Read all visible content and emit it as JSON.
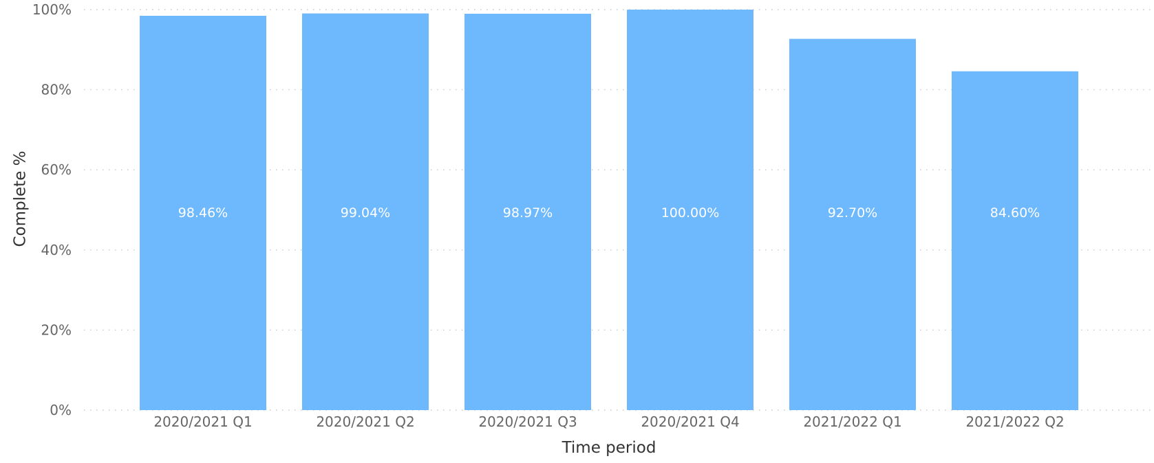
{
  "chart_data": {
    "type": "bar",
    "categories": [
      "2020/2021 Q1",
      "2020/2021 Q2",
      "2020/2021 Q3",
      "2020/2021 Q4",
      "2021/2022 Q1",
      "2021/2022 Q2"
    ],
    "values": [
      98.46,
      99.04,
      98.97,
      100.0,
      92.7,
      84.6
    ],
    "data_labels": [
      "98.46%",
      "99.04%",
      "98.97%",
      "100.00%",
      "92.70%",
      "84.60%"
    ],
    "title": "",
    "xlabel": "Time period",
    "ylabel": "Complete %",
    "ylim": [
      0,
      100
    ],
    "y_ticks": [
      0,
      20,
      40,
      60,
      80,
      100
    ],
    "y_tick_labels": [
      "0%",
      "20%",
      "40%",
      "60%",
      "80%",
      "100%"
    ],
    "grid": true,
    "legend": "none",
    "bar_color": "#6EB9FE"
  }
}
